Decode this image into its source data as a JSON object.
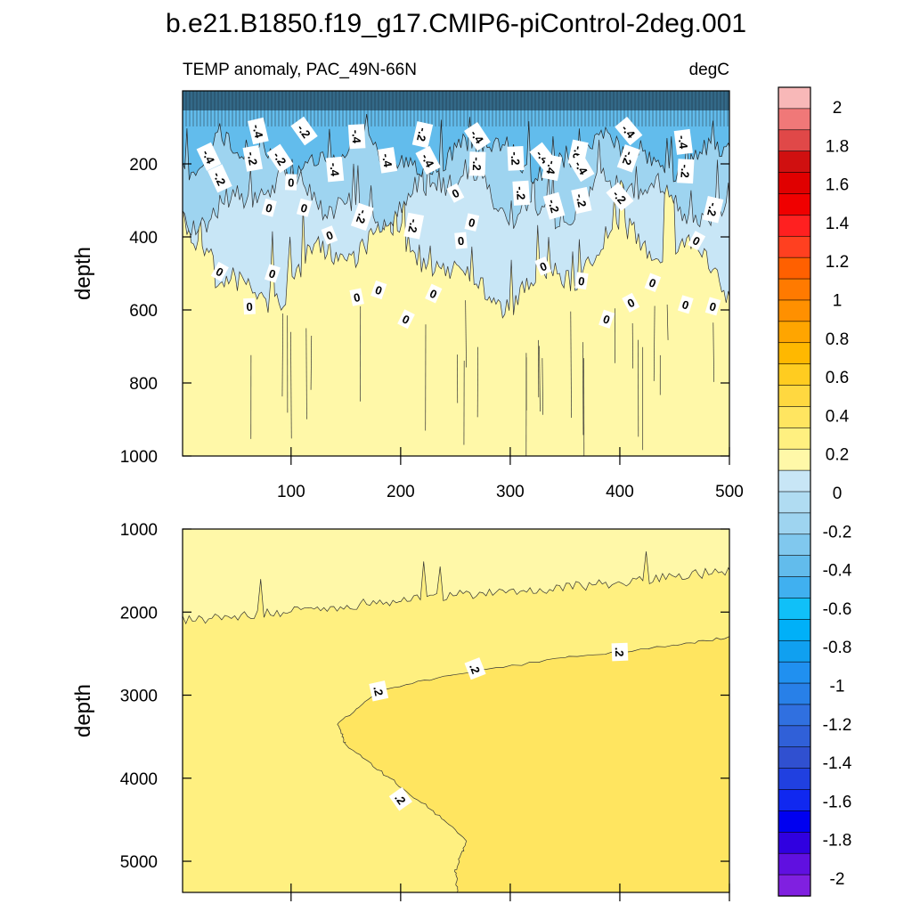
{
  "chart_data": [
    {
      "type": "heatmap",
      "panel": "top",
      "title": "b.e21.B1850.f19_g17.CMIP6-piControl-2deg.001",
      "left_string": "TEMP anomaly, PAC_49N-66N",
      "right_string": "degC",
      "xlabel": "",
      "ylabel": "depth",
      "xlim": [
        1,
        500
      ],
      "ylim": [
        1000,
        0
      ],
      "x_ticks": [
        100,
        200,
        300,
        400,
        500
      ],
      "y_ticks": [
        200,
        400,
        600,
        800,
        1000
      ],
      "contour_labels": [
        {
          "x": 25,
          "y": 180,
          "text": "-.4"
        },
        {
          "x": 70,
          "y": 110,
          "text": "-.4"
        },
        {
          "x": 112,
          "y": 110,
          "text": "-.2"
        },
        {
          "x": 160,
          "y": 125,
          "text": "-.4"
        },
        {
          "x": 220,
          "y": 120,
          "text": "-.2"
        },
        {
          "x": 270,
          "y": 125,
          "text": "-.4"
        },
        {
          "x": 330,
          "y": 180,
          "text": "-.4"
        },
        {
          "x": 362,
          "y": 170,
          "text": "-.6"
        },
        {
          "x": 408,
          "y": 110,
          "text": "-.4"
        },
        {
          "x": 458,
          "y": 140,
          "text": "-.4"
        },
        {
          "x": 65,
          "y": 185,
          "text": "-.2"
        },
        {
          "x": 90,
          "y": 185,
          "text": "-.2"
        },
        {
          "x": 140,
          "y": 215,
          "text": "-.4"
        },
        {
          "x": 188,
          "y": 190,
          "text": "-.4"
        },
        {
          "x": 225,
          "y": 190,
          "text": "-.4"
        },
        {
          "x": 270,
          "y": 200,
          "text": "-.2"
        },
        {
          "x": 305,
          "y": 185,
          "text": "-.2"
        },
        {
          "x": 338,
          "y": 210,
          "text": "-.4"
        },
        {
          "x": 365,
          "y": 210,
          "text": "-.4"
        },
        {
          "x": 408,
          "y": 185,
          "text": "-.2"
        },
        {
          "x": 460,
          "y": 220,
          "text": "-.2"
        },
        {
          "x": 35,
          "y": 240,
          "text": "-.2"
        },
        {
          "x": 100,
          "y": 250,
          "text": "0"
        },
        {
          "x": 80,
          "y": 320,
          "text": "0"
        },
        {
          "x": 112,
          "y": 320,
          "text": "0"
        },
        {
          "x": 165,
          "y": 345,
          "text": "-.2"
        },
        {
          "x": 212,
          "y": 370,
          "text": "-.2"
        },
        {
          "x": 250,
          "y": 280,
          "text": "0"
        },
        {
          "x": 310,
          "y": 280,
          "text": "-.2"
        },
        {
          "x": 340,
          "y": 315,
          "text": "-.2"
        },
        {
          "x": 365,
          "y": 300,
          "text": "-.2"
        },
        {
          "x": 400,
          "y": 290,
          "text": "-.2"
        },
        {
          "x": 485,
          "y": 325,
          "text": "-.2"
        },
        {
          "x": 135,
          "y": 395,
          "text": "0"
        },
        {
          "x": 255,
          "y": 410,
          "text": "0"
        },
        {
          "x": 265,
          "y": 360,
          "text": "0"
        },
        {
          "x": 470,
          "y": 410,
          "text": "0"
        },
        {
          "x": 35,
          "y": 495,
          "text": "0"
        },
        {
          "x": 83,
          "y": 500,
          "text": "0"
        },
        {
          "x": 330,
          "y": 480,
          "text": "0"
        },
        {
          "x": 365,
          "y": 520,
          "text": "0"
        },
        {
          "x": 430,
          "y": 525,
          "text": "0"
        },
        {
          "x": 160,
          "y": 565,
          "text": "0"
        },
        {
          "x": 180,
          "y": 545,
          "text": "0"
        },
        {
          "x": 230,
          "y": 555,
          "text": "0"
        },
        {
          "x": 410,
          "y": 580,
          "text": "0"
        },
        {
          "x": 460,
          "y": 585,
          "text": "0"
        },
        {
          "x": 485,
          "y": 590,
          "text": "0"
        },
        {
          "x": 62,
          "y": 590,
          "text": "0"
        },
        {
          "x": 205,
          "y": 625,
          "text": "0"
        },
        {
          "x": 388,
          "y": 625,
          "text": "0"
        }
      ]
    },
    {
      "type": "heatmap",
      "panel": "bottom",
      "xlabel": "",
      "ylabel": "depth",
      "xlim": [
        1,
        500
      ],
      "ylim": [
        5375,
        1000
      ],
      "y_ticks": [
        1000,
        2000,
        3000,
        4000,
        5000
      ],
      "contour_0_depth": [
        [
          1,
          2100
        ],
        [
          100,
          2000
        ],
        [
          200,
          1850
        ],
        [
          300,
          1750
        ],
        [
          400,
          1650
        ],
        [
          500,
          1500
        ]
      ],
      "contour_02_curve": [
        [
          500,
          2300
        ],
        [
          450,
          2400
        ],
        [
          350,
          2550
        ],
        [
          250,
          2750
        ],
        [
          180,
          2950
        ],
        [
          143,
          3350
        ],
        [
          150,
          3600
        ],
        [
          190,
          4000
        ],
        [
          230,
          4400
        ],
        [
          260,
          4750
        ],
        [
          250,
          5100
        ],
        [
          252,
          5375
        ]
      ],
      "contour_labels": [
        {
          "x": 180,
          "y": 2950,
          "text": ".2"
        },
        {
          "x": 268,
          "y": 2680,
          "text": ".2"
        },
        {
          "x": 400,
          "y": 2480,
          "text": ".2"
        },
        {
          "x": 200,
          "y": 4250,
          "text": ".2"
        }
      ]
    }
  ],
  "colorbar": {
    "labels": [
      "2",
      "1.8",
      "1.6",
      "1.4",
      "1.2",
      "1",
      "0.8",
      "0.6",
      "0.4",
      "0.2",
      "0",
      "-0.2",
      "-0.4",
      "-0.6",
      "-0.8",
      "-1",
      "-1.2",
      "-1.4",
      "-1.6",
      "-1.8",
      "-2"
    ],
    "colors": [
      "#f8b8b8",
      "#f07878",
      "#e04848",
      "#d01010",
      "#e00000",
      "#f00000",
      "#ff2020",
      "#ff4020",
      "#ff6000",
      "#ff7a00",
      "#ff9000",
      "#ffa500",
      "#ffb800",
      "#ffcc20",
      "#ffd840",
      "#ffe560",
      "#fff080",
      "#fff8a8",
      "#c8e6f6",
      "#b0dcf2",
      "#9ed4f0",
      "#80c8ee",
      "#62bcec",
      "#40b0f0",
      "#10c0f8",
      "#00b0f8",
      "#10a0f0",
      "#2090f0",
      "#2880e8",
      "#3070e0",
      "#3060d8",
      "#3050d0",
      "#2040e0",
      "#1028f0",
      "#0000f0",
      "#3000e0",
      "#6010e0",
      "#8020e0"
    ]
  }
}
